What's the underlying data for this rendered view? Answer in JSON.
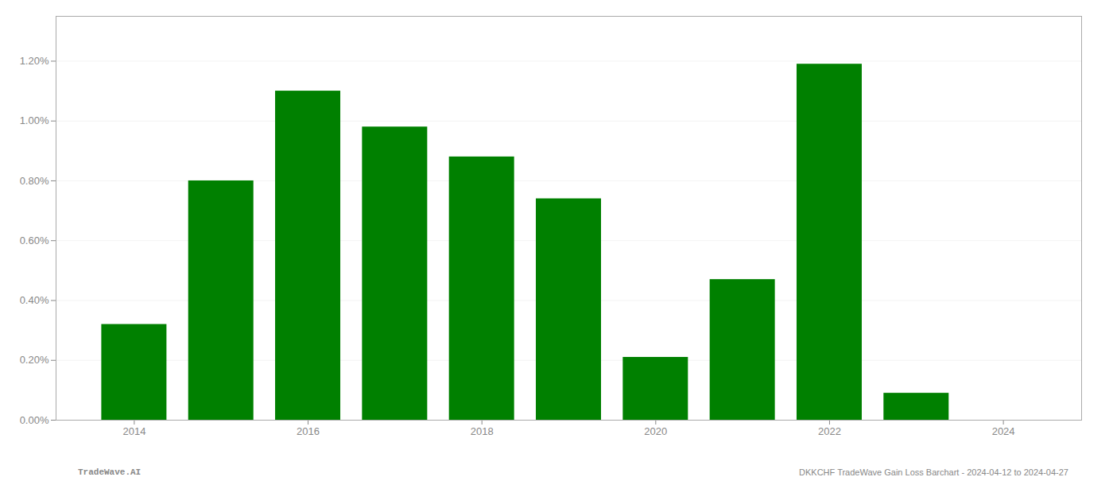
{
  "chart_data": {
    "type": "bar",
    "x": [
      2014,
      2015,
      2016,
      2017,
      2018,
      2019,
      2020,
      2021,
      2022,
      2023,
      2024
    ],
    "values": [
      0.0032,
      0.008,
      0.011,
      0.0098,
      0.0088,
      0.0074,
      0.0021,
      0.0047,
      0.0119,
      0.0009,
      0.0
    ],
    "color": "#008000",
    "xlim": [
      2013.1,
      2024.9
    ],
    "xticks": [
      2014,
      2016,
      2018,
      2020,
      2022,
      2024
    ],
    "ylim": [
      0,
      0.0135
    ],
    "yticks": [
      {
        "value": 0.0,
        "label": "0.00%"
      },
      {
        "value": 0.002,
        "label": "0.20%"
      },
      {
        "value": 0.004,
        "label": "0.40%"
      },
      {
        "value": 0.006,
        "label": "0.60%"
      },
      {
        "value": 0.008,
        "label": "0.80%"
      },
      {
        "value": 0.01,
        "label": "1.00%"
      },
      {
        "value": 0.012,
        "label": "1.20%"
      }
    ],
    "grid": true,
    "annotations": [
      "TradeWave.AI",
      "DKKCHF TradeWave Gain Loss Barchart - 2024-04-12 to 2024-04-27"
    ]
  }
}
